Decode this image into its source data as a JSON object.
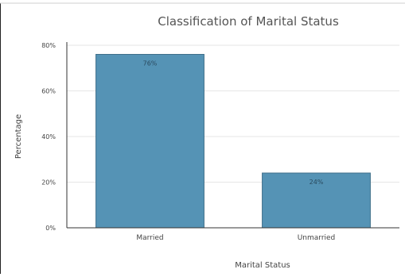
{
  "chart_data": {
    "type": "bar",
    "title": "Classification of Marital Status",
    "xlabel": "Marital Status",
    "ylabel": "Percentage",
    "categories": [
      "Married",
      "Unmarried"
    ],
    "values": [
      76,
      24
    ],
    "data_labels": [
      "76%",
      "24%"
    ],
    "ylim": [
      0,
      80
    ],
    "yticks": [
      0,
      20,
      40,
      60,
      80
    ],
    "ytick_labels": [
      "0%",
      "20%",
      "40%",
      "60%",
      "80%"
    ],
    "grid": true,
    "colors": {
      "bar": "#5593b5",
      "bar_edge": "#3f6f8a",
      "grid": "#e6e6e6",
      "axis": "#333333",
      "text": "#444444",
      "label_text": "#2a4a5e"
    }
  }
}
